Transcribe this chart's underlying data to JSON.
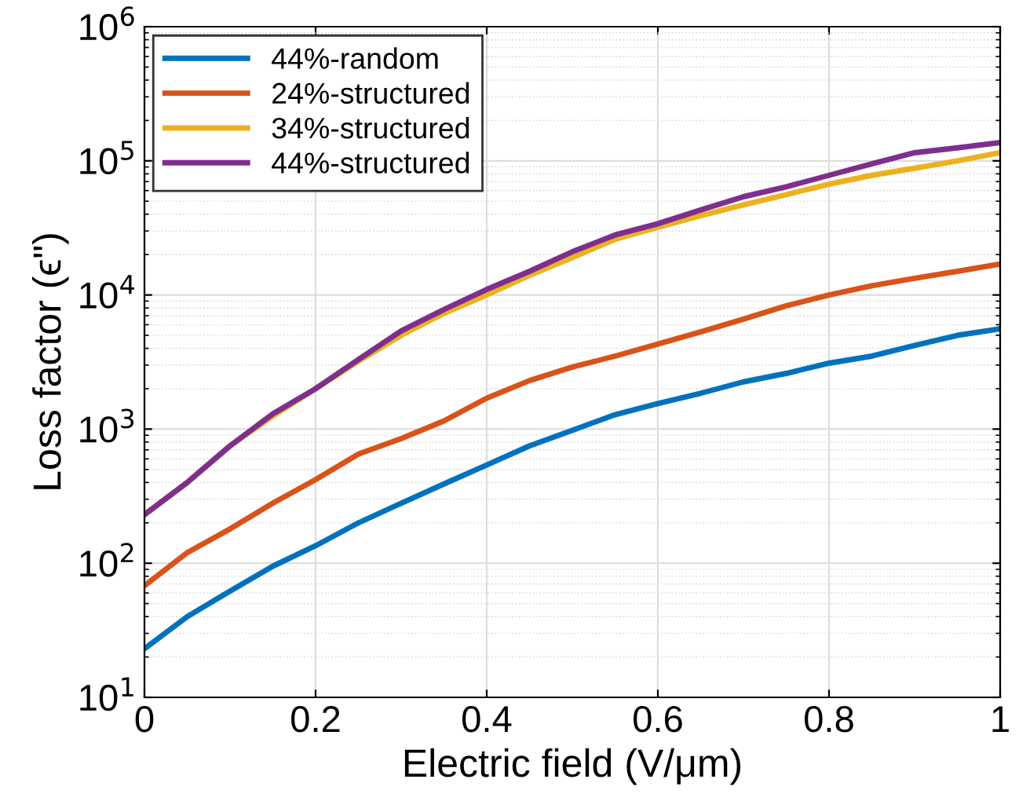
{
  "chart_data": {
    "type": "line",
    "xlabel": "Electric field (V/μm)",
    "ylabel": "Loss factor (ϵ\")",
    "log": "y",
    "grid": true,
    "legend": "top left",
    "line_style": "solid",
    "x": [
      0,
      0.05,
      0.1,
      0.15,
      0.2,
      0.25,
      0.3,
      0.35,
      0.4,
      0.45,
      0.5,
      0.55,
      0.6,
      0.65,
      0.7,
      0.75,
      0.8,
      0.85,
      0.9,
      0.95,
      1.0
    ],
    "xlim": [
      0,
      1
    ],
    "xticks": [
      0,
      0.2,
      0.4,
      0.6,
      0.8,
      1
    ],
    "ylim": [
      10,
      1000000
    ],
    "yticks": [
      {
        "value": 10,
        "label": "10$^{1}$"
      },
      {
        "value": 100,
        "label": "10$^{2}$"
      },
      {
        "value": 1000,
        "label": "10$^{3}$"
      },
      {
        "value": 10000,
        "label": "10$^{4}$"
      },
      {
        "value": 100000,
        "label": "10$^{5}$"
      },
      {
        "value": 1000000,
        "label": "10$^{6}$"
      }
    ],
    "series": [
      {
        "name": "44%-random",
        "color": "#0072bd",
        "values": [
          23,
          40,
          62,
          95,
          135,
          200,
          280,
          390,
          540,
          750,
          980,
          1280,
          1550,
          1850,
          2250,
          2600,
          3100,
          3500,
          4200,
          5000,
          5600
        ]
      },
      {
        "name": "24%-structured",
        "color": "#d95319",
        "values": [
          68,
          120,
          180,
          280,
          420,
          650,
          850,
          1150,
          1700,
          2300,
          2900,
          3500,
          4300,
          5300,
          6600,
          8300,
          10000,
          11700,
          13300,
          15000,
          17000
        ]
      },
      {
        "name": "34%-structured",
        "color": "#edb120",
        "values": [
          230,
          400,
          750,
          1250,
          2000,
          3200,
          5000,
          7300,
          10000,
          14000,
          19000,
          26000,
          32000,
          39000,
          47000,
          56000,
          67000,
          78000,
          88000,
          100000,
          115000
        ]
      },
      {
        "name": "44%-structured",
        "color": "#7e2f8e",
        "values": [
          230,
          400,
          750,
          1300,
          2000,
          3300,
          5400,
          7800,
          11000,
          15000,
          21000,
          28000,
          34000,
          43000,
          54000,
          64000,
          78000,
          95000,
          115000,
          125000,
          137000
        ]
      }
    ]
  }
}
